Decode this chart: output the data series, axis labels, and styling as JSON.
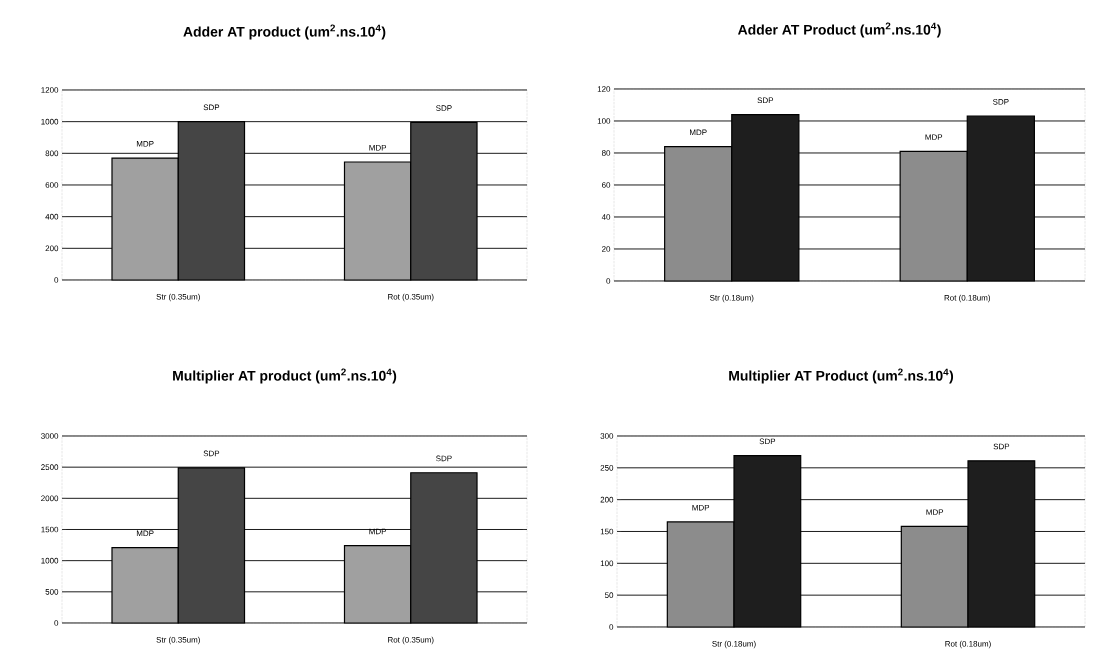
{
  "chart_data": [
    {
      "type": "bar",
      "title": "Adder AT product (um$^{2}$.ns.10$^{4}$)",
      "categories": [
        "Str (0.35um)",
        "Rot (0.35um)"
      ],
      "ylim": [
        0,
        1200
      ],
      "yticks": [
        0,
        200,
        400,
        600,
        800,
        1000,
        1200
      ],
      "grid": "y",
      "series": [
        {
          "name": "MDP",
          "color": "#a0a0a0",
          "values": [
            770,
            745
          ]
        },
        {
          "name": "SDP",
          "color": "#454545",
          "values": [
            1000,
            995
          ]
        }
      ]
    },
    {
      "type": "bar",
      "title": "Adder AT Product (um$^{2}$.ns.10$^{4}$)",
      "categories": [
        "Str (0.18um)",
        "Rot (0.18um)"
      ],
      "ylim": [
        0,
        120
      ],
      "yticks": [
        0,
        20,
        40,
        60,
        80,
        100,
        120
      ],
      "grid": "y",
      "series": [
        {
          "name": "MDP",
          "color": "#8c8c8c",
          "values": [
            84,
            81
          ]
        },
        {
          "name": "SDP",
          "color": "#1e1e1e",
          "values": [
            104,
            103
          ]
        }
      ]
    },
    {
      "type": "bar",
      "title": "Multiplier AT product (um$^{2}$.ns.10$^{4}$)",
      "categories": [
        "Str (0.35um)",
        "Rot (0.35um)"
      ],
      "ylim": [
        0,
        3000
      ],
      "yticks": [
        0,
        500,
        1000,
        1500,
        2000,
        2500,
        3000
      ],
      "grid": "y",
      "series": [
        {
          "name": "MDP",
          "color": "#a0a0a0",
          "values": [
            1210,
            1240
          ]
        },
        {
          "name": "SDP",
          "color": "#454545",
          "values": [
            2490,
            2410
          ]
        }
      ]
    },
    {
      "type": "bar",
      "title": "Multiplier AT Product (um$^{2}$.ns.10$^{4}$)",
      "categories": [
        "Str (0.18um)",
        "Rot (0.18um)"
      ],
      "ylim": [
        0,
        300
      ],
      "yticks": [
        0,
        50,
        100,
        150,
        200,
        250,
        300
      ],
      "grid": "y",
      "series": [
        {
          "name": "MDP",
          "color": "#8c8c8c",
          "values": [
            165,
            158
          ]
        },
        {
          "name": "SDP",
          "color": "#1e1e1e",
          "values": [
            269,
            261
          ]
        }
      ]
    }
  ]
}
